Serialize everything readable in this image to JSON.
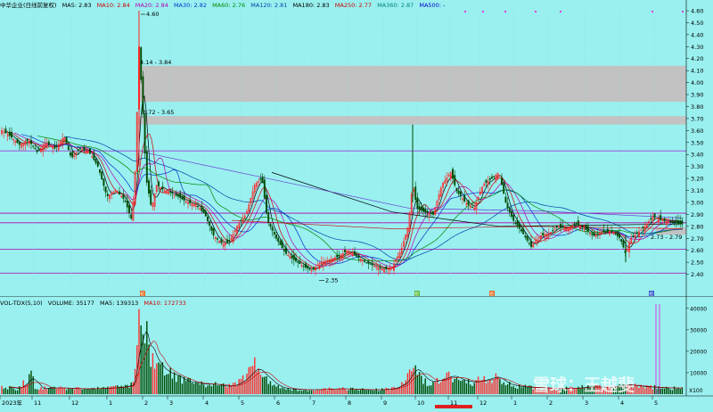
{
  "main_header": {
    "title": "中华企业(日线前复权)",
    "items": [
      {
        "text": "MA5: 2.83",
        "color": "#000000"
      },
      {
        "text": "MA10: 2.84",
        "color": "#cc0000"
      },
      {
        "text": "MA20: 2.84",
        "color": "#b000b0"
      },
      {
        "text": "MA30: 2.82",
        "color": "#0033cc"
      },
      {
        "text": "MA60: 2.76",
        "color": "#008800"
      },
      {
        "text": "MA120: 2.81",
        "color": "#0044aa"
      },
      {
        "text": "MA180: 2.83",
        "color": "#000000"
      },
      {
        "text": "MA250: 2.77",
        "color": "#cc0000"
      },
      {
        "text": "MA360: 2.87",
        "color": "#008080"
      },
      {
        "text": "MA500: -",
        "color": "#0000cc"
      }
    ]
  },
  "vol_header": {
    "items": [
      {
        "text": "VOL-TDX(5,10)",
        "color": "#000000"
      },
      {
        "text": "VOLUME: 35177",
        "color": "#000000"
      },
      {
        "text": "MA5: 139313",
        "color": "#000000"
      },
      {
        "text": "MA10: 172733",
        "color": "#cc0000"
      }
    ]
  },
  "price_axis": {
    "min": 2.3,
    "max": 4.6,
    "ticks": [
      "4.60",
      "4.50",
      "4.40",
      "4.30",
      "4.20",
      "4.10",
      "4.00",
      "3.90",
      "3.80",
      "3.70",
      "3.60",
      "3.50",
      "3.40",
      "3.30",
      "3.20",
      "3.10",
      "3.00",
      "2.90",
      "2.80",
      "2.70",
      "2.60",
      "2.50",
      "2.40"
    ]
  },
  "volume_axis": {
    "max": 40000,
    "ticks": [
      "40000",
      "30000",
      "20000",
      "10000"
    ],
    "unit_label": "X100"
  },
  "annotations": {
    "high": "4.60",
    "low": "2.35",
    "zone_upper": "4.14 - 3.84",
    "zone_lower": "3.72 - 3.65",
    "zone_recent": "2.73 - 2.79"
  },
  "time_axis": {
    "labels": [
      "2023年",
      "11",
      "12",
      "1",
      "2",
      "3",
      "4",
      "5",
      "6",
      "7",
      "8",
      "9",
      "10",
      "11",
      "12",
      "1",
      "2",
      "3",
      "4",
      "5"
    ]
  },
  "markers": [
    "招",
    "招",
    "招",
    "招"
  ],
  "watermark": "雪球：王越斐",
  "chart_data": {
    "type": "candlestick",
    "price_range": [
      2.3,
      4.6
    ],
    "peak_high": 4.6,
    "period_low": 2.35,
    "resistance_zones": [
      [
        3.84,
        4.14
      ],
      [
        3.65,
        3.72
      ]
    ],
    "support_zone": [
      2.73,
      2.79
    ],
    "horizontal_lines": [
      3.43,
      2.91,
      2.83,
      2.61,
      2.41
    ],
    "close_path": [
      {
        "x": 2,
        "c": 3.6
      },
      {
        "x": 12,
        "c": 3.55
      },
      {
        "x": 22,
        "c": 3.48
      },
      {
        "x": 32,
        "c": 3.52
      },
      {
        "x": 42,
        "c": 3.42
      },
      {
        "x": 52,
        "c": 3.5
      },
      {
        "x": 62,
        "c": 3.45
      },
      {
        "x": 72,
        "c": 3.55
      },
      {
        "x": 80,
        "c": 3.37
      },
      {
        "x": 90,
        "c": 3.45
      },
      {
        "x": 100,
        "c": 3.42
      },
      {
        "x": 110,
        "c": 3.3
      },
      {
        "x": 120,
        "c": 3.05
      },
      {
        "x": 130,
        "c": 3.1
      },
      {
        "x": 140,
        "c": 3.02
      },
      {
        "x": 148,
        "c": 2.85
      },
      {
        "x": 152,
        "c": 3.3
      },
      {
        "x": 156,
        "c": 4.3
      },
      {
        "x": 160,
        "c": 3.8
      },
      {
        "x": 164,
        "c": 3.2
      },
      {
        "x": 170,
        "c": 2.95
      },
      {
        "x": 176,
        "c": 3.15
      },
      {
        "x": 184,
        "c": 3.1
      },
      {
        "x": 192,
        "c": 3.08
      },
      {
        "x": 200,
        "c": 3.05
      },
      {
        "x": 210,
        "c": 3.0
      },
      {
        "x": 220,
        "c": 2.98
      },
      {
        "x": 230,
        "c": 2.9
      },
      {
        "x": 240,
        "c": 2.72
      },
      {
        "x": 250,
        "c": 2.65
      },
      {
        "x": 258,
        "c": 2.68
      },
      {
        "x": 266,
        "c": 2.8
      },
      {
        "x": 276,
        "c": 2.9
      },
      {
        "x": 286,
        "c": 3.15
      },
      {
        "x": 294,
        "c": 3.2
      },
      {
        "x": 300,
        "c": 2.85
      },
      {
        "x": 310,
        "c": 2.7
      },
      {
        "x": 320,
        "c": 2.58
      },
      {
        "x": 330,
        "c": 2.52
      },
      {
        "x": 340,
        "c": 2.47
      },
      {
        "x": 350,
        "c": 2.43
      },
      {
        "x": 360,
        "c": 2.5
      },
      {
        "x": 370,
        "c": 2.52
      },
      {
        "x": 380,
        "c": 2.55
      },
      {
        "x": 390,
        "c": 2.6
      },
      {
        "x": 400,
        "c": 2.55
      },
      {
        "x": 410,
        "c": 2.5
      },
      {
        "x": 420,
        "c": 2.47
      },
      {
        "x": 430,
        "c": 2.44
      },
      {
        "x": 440,
        "c": 2.46
      },
      {
        "x": 450,
        "c": 2.6
      },
      {
        "x": 458,
        "c": 2.8
      },
      {
        "x": 463,
        "c": 3.15
      },
      {
        "x": 468,
        "c": 2.95
      },
      {
        "x": 476,
        "c": 2.92
      },
      {
        "x": 486,
        "c": 2.9
      },
      {
        "x": 496,
        "c": 3.15
      },
      {
        "x": 506,
        "c": 3.25
      },
      {
        "x": 512,
        "c": 3.1
      },
      {
        "x": 522,
        "c": 3.0
      },
      {
        "x": 532,
        "c": 2.95
      },
      {
        "x": 542,
        "c": 3.15
      },
      {
        "x": 552,
        "c": 3.2
      },
      {
        "x": 560,
        "c": 3.25
      },
      {
        "x": 568,
        "c": 2.98
      },
      {
        "x": 576,
        "c": 2.85
      },
      {
        "x": 586,
        "c": 2.75
      },
      {
        "x": 596,
        "c": 2.63
      },
      {
        "x": 606,
        "c": 2.72
      },
      {
        "x": 616,
        "c": 2.74
      },
      {
        "x": 626,
        "c": 2.8
      },
      {
        "x": 636,
        "c": 2.78
      },
      {
        "x": 646,
        "c": 2.82
      },
      {
        "x": 656,
        "c": 2.78
      },
      {
        "x": 666,
        "c": 2.72
      },
      {
        "x": 676,
        "c": 2.75
      },
      {
        "x": 686,
        "c": 2.76
      },
      {
        "x": 696,
        "c": 2.7
      },
      {
        "x": 702,
        "c": 2.57
      },
      {
        "x": 708,
        "c": 2.7
      },
      {
        "x": 716,
        "c": 2.75
      },
      {
        "x": 724,
        "c": 2.8
      },
      {
        "x": 732,
        "c": 2.88
      },
      {
        "x": 740,
        "c": 2.86
      },
      {
        "x": 748,
        "c": 2.84
      },
      {
        "x": 756,
        "c": 2.83
      },
      {
        "x": 764,
        "c": 2.82
      }
    ],
    "volume_path": [
      {
        "x": 2,
        "v": 3500
      },
      {
        "x": 20,
        "v": 2500
      },
      {
        "x": 36,
        "v": 9000
      },
      {
        "x": 40,
        "v": 2500
      },
      {
        "x": 60,
        "v": 3000
      },
      {
        "x": 80,
        "v": 2600
      },
      {
        "x": 100,
        "v": 2500
      },
      {
        "x": 120,
        "v": 2800
      },
      {
        "x": 140,
        "v": 3500
      },
      {
        "x": 150,
        "v": 5000
      },
      {
        "x": 156,
        "v": 42000
      },
      {
        "x": 160,
        "v": 20000
      },
      {
        "x": 164,
        "v": 28000
      },
      {
        "x": 168,
        "v": 20000
      },
      {
        "x": 176,
        "v": 14000
      },
      {
        "x": 186,
        "v": 10000
      },
      {
        "x": 196,
        "v": 9000
      },
      {
        "x": 206,
        "v": 6000
      },
      {
        "x": 216,
        "v": 5500
      },
      {
        "x": 226,
        "v": 4500
      },
      {
        "x": 236,
        "v": 5000
      },
      {
        "x": 246,
        "v": 4000
      },
      {
        "x": 256,
        "v": 3500
      },
      {
        "x": 266,
        "v": 5000
      },
      {
        "x": 276,
        "v": 8000
      },
      {
        "x": 286,
        "v": 13000
      },
      {
        "x": 292,
        "v": 10000
      },
      {
        "x": 300,
        "v": 7000
      },
      {
        "x": 310,
        "v": 3500
      },
      {
        "x": 320,
        "v": 2500
      },
      {
        "x": 340,
        "v": 2000
      },
      {
        "x": 360,
        "v": 2200
      },
      {
        "x": 380,
        "v": 2500
      },
      {
        "x": 400,
        "v": 2200
      },
      {
        "x": 420,
        "v": 2000
      },
      {
        "x": 440,
        "v": 2500
      },
      {
        "x": 456,
        "v": 6000
      },
      {
        "x": 463,
        "v": 14000
      },
      {
        "x": 470,
        "v": 9000
      },
      {
        "x": 480,
        "v": 5500
      },
      {
        "x": 496,
        "v": 7000
      },
      {
        "x": 506,
        "v": 9000
      },
      {
        "x": 516,
        "v": 6500
      },
      {
        "x": 530,
        "v": 5500
      },
      {
        "x": 546,
        "v": 7000
      },
      {
        "x": 556,
        "v": 8500
      },
      {
        "x": 566,
        "v": 5000
      },
      {
        "x": 580,
        "v": 3500
      },
      {
        "x": 600,
        "v": 3000
      },
      {
        "x": 620,
        "v": 2700
      },
      {
        "x": 640,
        "v": 2600
      },
      {
        "x": 660,
        "v": 3500
      },
      {
        "x": 680,
        "v": 3000
      },
      {
        "x": 700,
        "v": 4500
      },
      {
        "x": 720,
        "v": 3500
      },
      {
        "x": 740,
        "v": 3000
      },
      {
        "x": 760,
        "v": 2800
      }
    ],
    "volume_spikes": [
      {
        "x": 736,
        "v": 42000
      },
      {
        "x": 740,
        "v": 42000
      }
    ]
  }
}
